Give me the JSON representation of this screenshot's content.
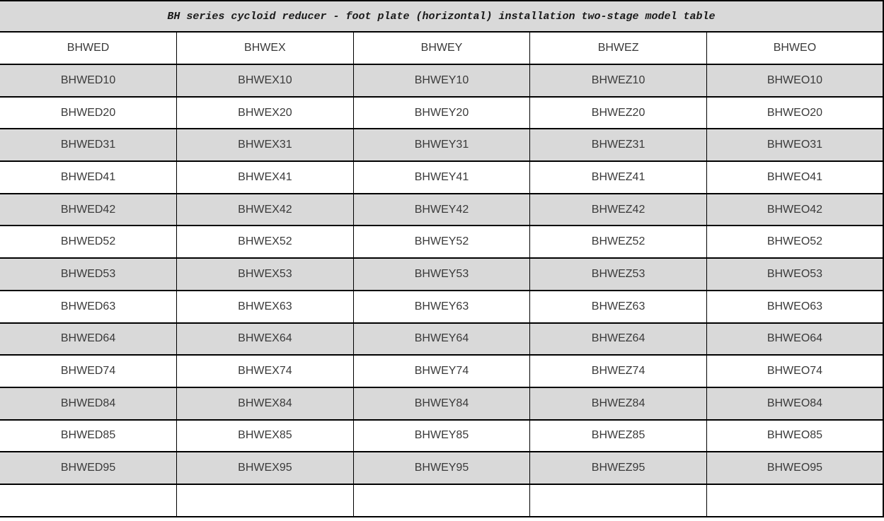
{
  "title": "BH series cycloid reducer - foot plate (horizontal) installation two-stage model table",
  "table": {
    "columns": [
      "BHWED",
      "BHWEX",
      "BHWEY",
      "BHWEZ",
      "BHWEO"
    ],
    "rows": [
      [
        "BHWED10",
        "BHWEX10",
        "BHWEY10",
        "BHWEZ10",
        "BHWEO10"
      ],
      [
        "BHWED20",
        "BHWEX20",
        "BHWEY20",
        "BHWEZ20",
        "BHWEO20"
      ],
      [
        "BHWED31",
        "BHWEX31",
        "BHWEY31",
        "BHWEZ31",
        "BHWEO31"
      ],
      [
        "BHWED41",
        "BHWEX41",
        "BHWEY41",
        "BHWEZ41",
        "BHWEO41"
      ],
      [
        "BHWED42",
        "BHWEX42",
        "BHWEY42",
        "BHWEZ42",
        "BHWEO42"
      ],
      [
        "BHWED52",
        "BHWEX52",
        "BHWEY52",
        "BHWEZ52",
        "BHWEO52"
      ],
      [
        "BHWED53",
        "BHWEX53",
        "BHWEY53",
        "BHWEZ53",
        "BHWEO53"
      ],
      [
        "BHWED63",
        "BHWEX63",
        "BHWEY63",
        "BHWEZ63",
        "BHWEO63"
      ],
      [
        "BHWED64",
        "BHWEX64",
        "BHWEY64",
        "BHWEZ64",
        "BHWEO64"
      ],
      [
        "BHWED74",
        "BHWEX74",
        "BHWEY74",
        "BHWEZ74",
        "BHWEO74"
      ],
      [
        "BHWED84",
        "BHWEX84",
        "BHWEY84",
        "BHWEZ84",
        "BHWEO84"
      ],
      [
        "BHWED85",
        "BHWEX85",
        "BHWEY85",
        "BHWEZ85",
        "BHWEO85"
      ],
      [
        "BHWED95",
        "BHWEX95",
        "BHWEY95",
        "BHWEZ95",
        "BHWEO95"
      ],
      [
        "",
        "",
        "",
        "",
        ""
      ]
    ]
  },
  "colors": {
    "shaded_row": "#d9d9d9",
    "border": "#000000",
    "text": "#3a3a3a"
  }
}
